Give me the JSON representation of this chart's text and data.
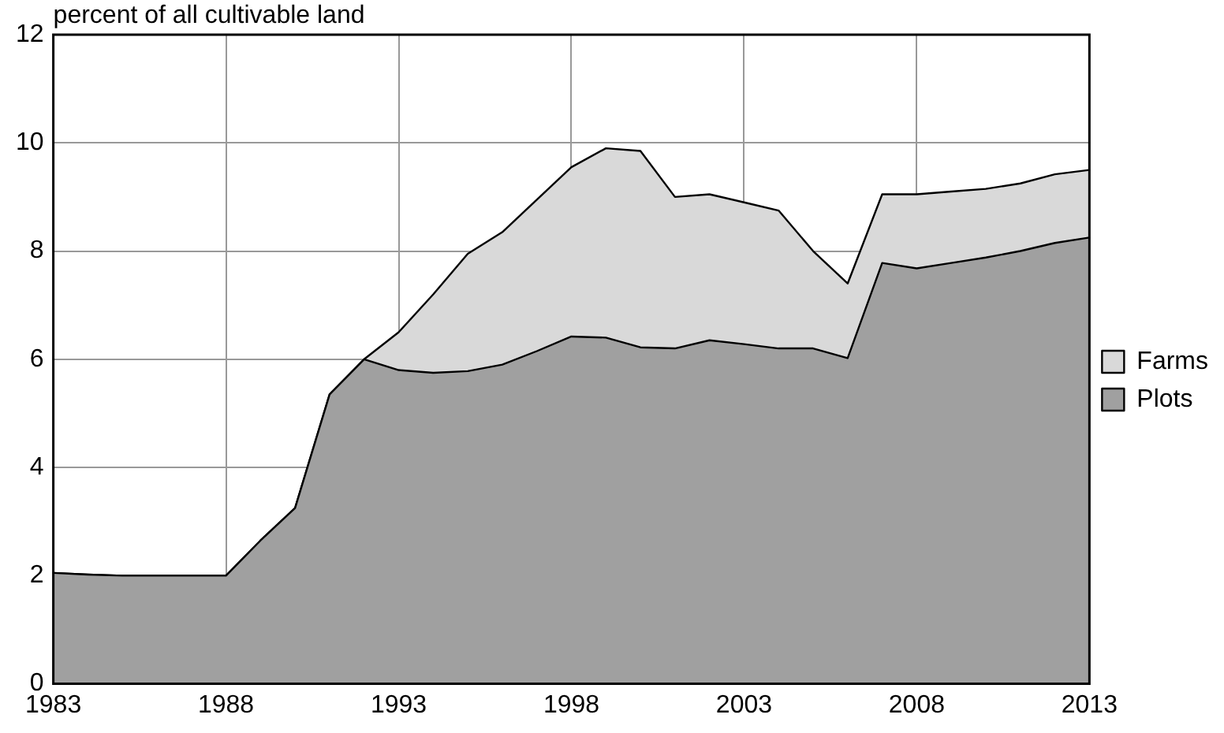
{
  "chart_data": {
    "type": "area",
    "ylabel": "percent of all cultivable land",
    "stacked": true,
    "grid": true,
    "legend": "right",
    "x": [
      1983,
      1984,
      1985,
      1986,
      1987,
      1988,
      1989,
      1990,
      1991,
      1992,
      1993,
      1994,
      1995,
      1996,
      1997,
      1998,
      1999,
      2000,
      2001,
      2002,
      2003,
      2004,
      2005,
      2006,
      2007,
      2008,
      2009,
      2010,
      2011,
      2012,
      2013
    ],
    "xlim": [
      1983,
      2013
    ],
    "xticks": [
      1983,
      1988,
      1993,
      1998,
      2003,
      2008,
      2013
    ],
    "ylim": [
      0,
      12
    ],
    "yticks": [
      0,
      2,
      4,
      6,
      8,
      10,
      12
    ],
    "series": [
      {
        "name": "Plots",
        "color": "#a0a0a0",
        "values": [
          2.05,
          2.02,
          2.0,
          2.0,
          2.0,
          2.0,
          2.65,
          3.25,
          5.35,
          6.0,
          5.8,
          5.75,
          5.78,
          5.9,
          6.15,
          6.42,
          6.4,
          6.22,
          6.2,
          6.35,
          6.28,
          6.2,
          6.2,
          6.02,
          7.78,
          7.68,
          7.78,
          7.88,
          8.0,
          8.15,
          8.25
        ]
      },
      {
        "name": "Farms",
        "color": "#d9d9d9",
        "values": [
          0,
          0,
          0,
          0,
          0,
          0,
          0,
          0,
          0,
          0,
          0.7,
          1.45,
          2.17,
          2.45,
          2.8,
          3.13,
          3.5,
          3.63,
          2.8,
          2.7,
          2.62,
          2.55,
          1.8,
          1.38,
          1.27,
          1.37,
          1.32,
          1.27,
          1.25,
          1.27,
          1.25
        ]
      }
    ]
  }
}
